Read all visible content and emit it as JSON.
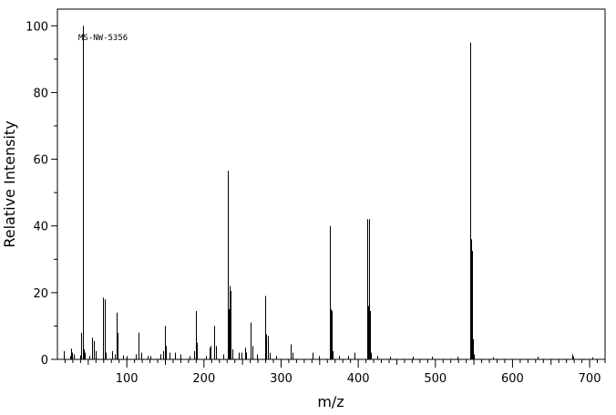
{
  "chart_data": {
    "type": "bar",
    "xlabel": "m/z",
    "ylabel": "Relative Intensity",
    "annotation": "MS-NW-5356",
    "xlim": [
      10,
      720
    ],
    "ylim": [
      0,
      105
    ],
    "x_ticks": [
      100,
      200,
      300,
      400,
      500,
      600,
      700
    ],
    "y_ticks": [
      0,
      20,
      40,
      60,
      80,
      100
    ],
    "grid": false,
    "legend": "none",
    "peaks": [
      {
        "mz": 18,
        "intensity": 2.5
      },
      {
        "mz": 27,
        "intensity": 1.0
      },
      {
        "mz": 28,
        "intensity": 3.2
      },
      {
        "mz": 29,
        "intensity": 2.0
      },
      {
        "mz": 31,
        "intensity": 1.5
      },
      {
        "mz": 39,
        "intensity": 1.2
      },
      {
        "mz": 41,
        "intensity": 8.0
      },
      {
        "mz": 43,
        "intensity": 100.0
      },
      {
        "mz": 44,
        "intensity": 3.0
      },
      {
        "mz": 45,
        "intensity": 2.0
      },
      {
        "mz": 51,
        "intensity": 1.0
      },
      {
        "mz": 55,
        "intensity": 6.5
      },
      {
        "mz": 57,
        "intensity": 5.5
      },
      {
        "mz": 60,
        "intensity": 2.5
      },
      {
        "mz": 69,
        "intensity": 18.5
      },
      {
        "mz": 71,
        "intensity": 18.0
      },
      {
        "mz": 73,
        "intensity": 2.0
      },
      {
        "mz": 81,
        "intensity": 2.5
      },
      {
        "mz": 85,
        "intensity": 1.5
      },
      {
        "mz": 87,
        "intensity": 14.0
      },
      {
        "mz": 88,
        "intensity": 8.0
      },
      {
        "mz": 95,
        "intensity": 1.2
      },
      {
        "mz": 100,
        "intensity": 1.0
      },
      {
        "mz": 112,
        "intensity": 1.5
      },
      {
        "mz": 115,
        "intensity": 8.0
      },
      {
        "mz": 119,
        "intensity": 2.0
      },
      {
        "mz": 127,
        "intensity": 1.0
      },
      {
        "mz": 131,
        "intensity": 1.0
      },
      {
        "mz": 143,
        "intensity": 1.5
      },
      {
        "mz": 147,
        "intensity": 2.5
      },
      {
        "mz": 149,
        "intensity": 10.0
      },
      {
        "mz": 151,
        "intensity": 4.0
      },
      {
        "mz": 155,
        "intensity": 2.0
      },
      {
        "mz": 162,
        "intensity": 2.0
      },
      {
        "mz": 169,
        "intensity": 1.5
      },
      {
        "mz": 181,
        "intensity": 1.0
      },
      {
        "mz": 187,
        "intensity": 2.5
      },
      {
        "mz": 189,
        "intensity": 14.5
      },
      {
        "mz": 190,
        "intensity": 6.5
      },
      {
        "mz": 191,
        "intensity": 5.0
      },
      {
        "mz": 203,
        "intensity": 1.0
      },
      {
        "mz": 207,
        "intensity": 3.5
      },
      {
        "mz": 209,
        "intensity": 4.0
      },
      {
        "mz": 213,
        "intensity": 10.0
      },
      {
        "mz": 215,
        "intensity": 4.0
      },
      {
        "mz": 225,
        "intensity": 1.5
      },
      {
        "mz": 231,
        "intensity": 56.5
      },
      {
        "mz": 232,
        "intensity": 15.0
      },
      {
        "mz": 233,
        "intensity": 22.0
      },
      {
        "mz": 235,
        "intensity": 20.5
      },
      {
        "mz": 237,
        "intensity": 3.0
      },
      {
        "mz": 245,
        "intensity": 2.0
      },
      {
        "mz": 249,
        "intensity": 2.0
      },
      {
        "mz": 253,
        "intensity": 3.5
      },
      {
        "mz": 255,
        "intensity": 2.0
      },
      {
        "mz": 261,
        "intensity": 11.0
      },
      {
        "mz": 263,
        "intensity": 4.0
      },
      {
        "mz": 269,
        "intensity": 1.5
      },
      {
        "mz": 279,
        "intensity": 19.0
      },
      {
        "mz": 280,
        "intensity": 7.5
      },
      {
        "mz": 281,
        "intensity": 7.5
      },
      {
        "mz": 283,
        "intensity": 7.0
      },
      {
        "mz": 285,
        "intensity": 2.0
      },
      {
        "mz": 293,
        "intensity": 1.0
      },
      {
        "mz": 313,
        "intensity": 4.5
      },
      {
        "mz": 315,
        "intensity": 2.0
      },
      {
        "mz": 341,
        "intensity": 2.0
      },
      {
        "mz": 349,
        "intensity": 1.0
      },
      {
        "mz": 363,
        "intensity": 40.0
      },
      {
        "mz": 364,
        "intensity": 15.0
      },
      {
        "mz": 365,
        "intensity": 14.5
      },
      {
        "mz": 367,
        "intensity": 2.5
      },
      {
        "mz": 375,
        "intensity": 1.0
      },
      {
        "mz": 387,
        "intensity": 1.0
      },
      {
        "mz": 395,
        "intensity": 2.0
      },
      {
        "mz": 412,
        "intensity": 42.0
      },
      {
        "mz": 413,
        "intensity": 16.0
      },
      {
        "mz": 414,
        "intensity": 42.0
      },
      {
        "mz": 415,
        "intensity": 14.5
      },
      {
        "mz": 416,
        "intensity": 2.0
      },
      {
        "mz": 425,
        "intensity": 1.0
      },
      {
        "mz": 441,
        "intensity": 0.8
      },
      {
        "mz": 471,
        "intensity": 0.8
      },
      {
        "mz": 495,
        "intensity": 0.8
      },
      {
        "mz": 529,
        "intensity": 0.8
      },
      {
        "mz": 545,
        "intensity": 95.0
      },
      {
        "mz": 546,
        "intensity": 36.0
      },
      {
        "mz": 547,
        "intensity": 32.5
      },
      {
        "mz": 548,
        "intensity": 6.5
      },
      {
        "mz": 549,
        "intensity": 6.0
      },
      {
        "mz": 550,
        "intensity": 1.5
      },
      {
        "mz": 575,
        "intensity": 0.6
      },
      {
        "mz": 633,
        "intensity": 0.8
      },
      {
        "mz": 677,
        "intensity": 1.5
      },
      {
        "mz": 679,
        "intensity": 0.8
      },
      {
        "mz": 703,
        "intensity": 0.6
      }
    ]
  }
}
